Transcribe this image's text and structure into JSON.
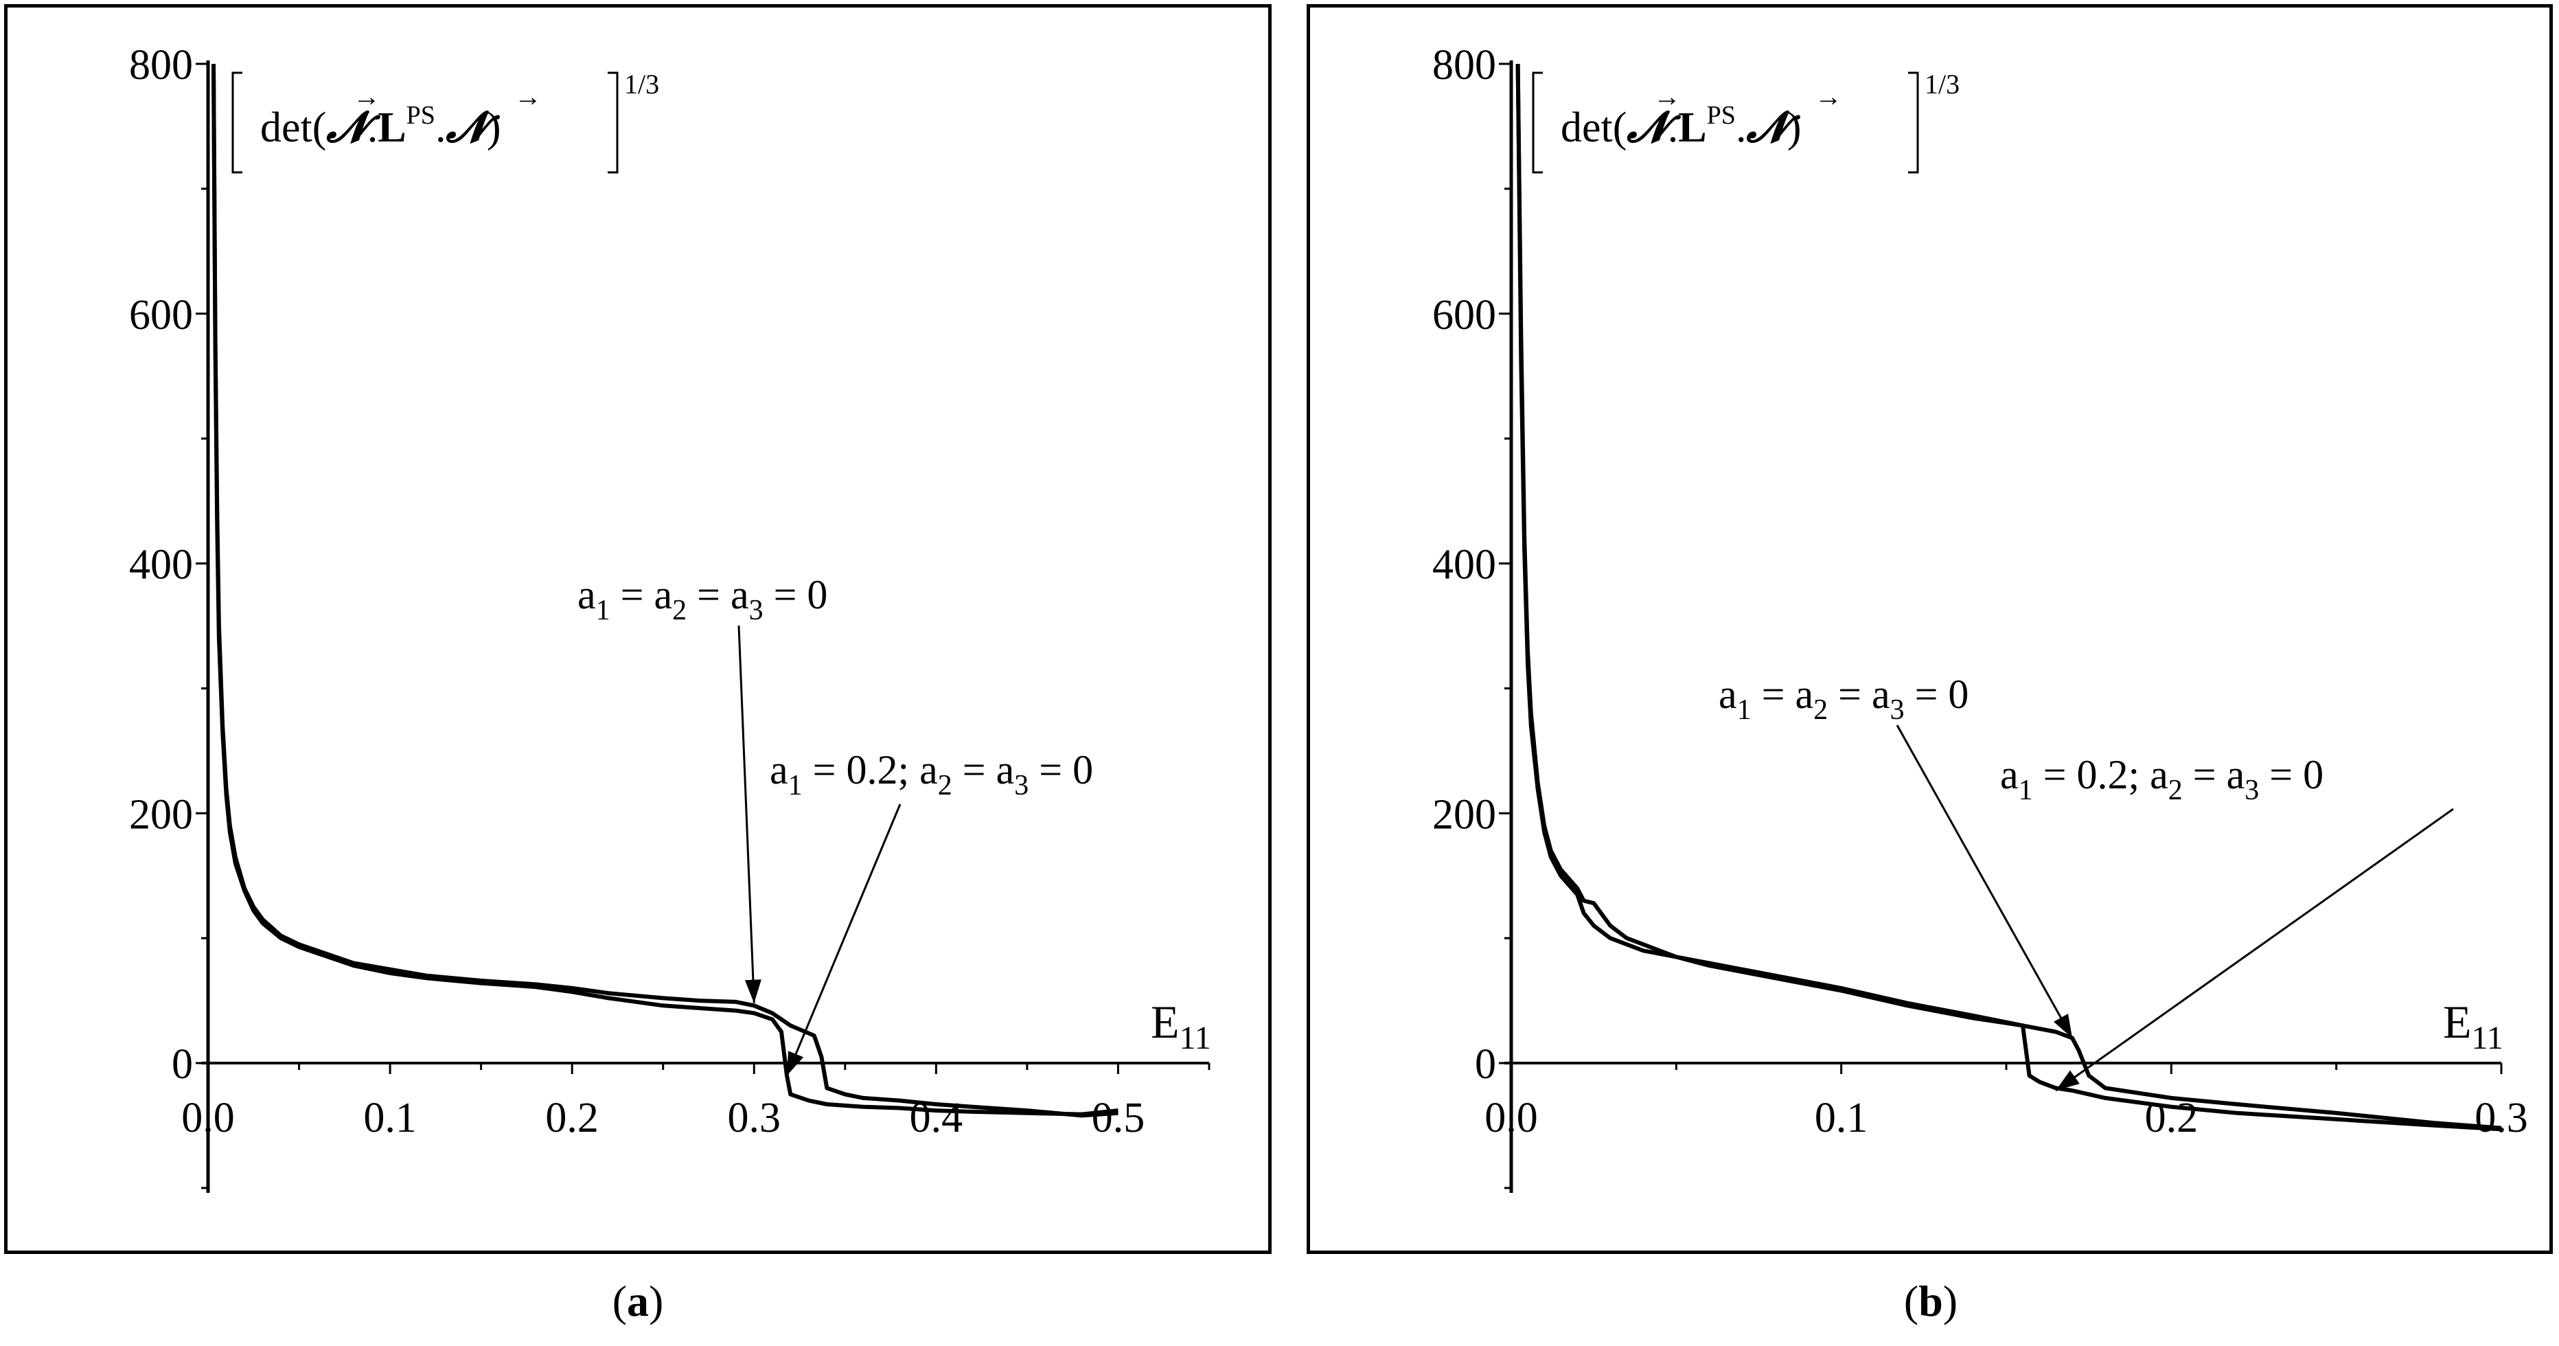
{
  "figure": {
    "panels": [
      {
        "caption_open": "(",
        "caption_letter": "a",
        "caption_close": ")"
      },
      {
        "caption_open": "(",
        "caption_letter": "b",
        "caption_close": ")"
      }
    ]
  },
  "chart_data": [
    {
      "type": "line",
      "panel": "a",
      "ylabel_expr": "[ det(N.L^PS.N) ]^1/3",
      "ylabel_parts": {
        "det": "det(",
        "dot1": ".",
        "L": "L",
        "PS": "PS",
        "dot2": ".",
        "close": ")",
        "power": "1/3",
        "N": "𝓝",
        "arrow": "→"
      },
      "xlabel_main": "E",
      "xlabel_sub": "11",
      "xlim": [
        0,
        0.55
      ],
      "ylim": [
        -100,
        800
      ],
      "xticks": [
        0.0,
        0.1,
        0.2,
        0.3,
        0.4,
        0.5
      ],
      "xtick_labels": [
        "0.0",
        "0.1",
        "0.2",
        "0.3",
        "0.4",
        "0.5"
      ],
      "yticks": [
        0,
        200,
        400,
        600,
        800
      ],
      "ytick_labels": [
        "0",
        "200",
        "400",
        "600",
        "800"
      ],
      "series": [
        {
          "name": "a1 = a2 = a3 = 0",
          "x": [
            0.003,
            0.004,
            0.005,
            0.006,
            0.008,
            0.01,
            0.012,
            0.015,
            0.02,
            0.025,
            0.03,
            0.04,
            0.05,
            0.06,
            0.08,
            0.1,
            0.12,
            0.15,
            0.18,
            0.2,
            0.22,
            0.25,
            0.27,
            0.29,
            0.3,
            0.31,
            0.32,
            0.333,
            0.337,
            0.34,
            0.35,
            0.36,
            0.38,
            0.4,
            0.42,
            0.45,
            0.48,
            0.5
          ],
          "y": [
            800,
            580,
            440,
            350,
            270,
            220,
            190,
            165,
            140,
            125,
            115,
            102,
            95,
            90,
            80,
            75,
            70,
            66,
            63,
            60,
            56,
            52,
            50,
            49,
            46,
            40,
            30,
            22,
            5,
            -20,
            -25,
            -28,
            -30,
            -33,
            -35,
            -38,
            -42,
            -40
          ]
        },
        {
          "name": "a1 = 0.2; a2 = a3 = 0",
          "x": [
            0.003,
            0.004,
            0.005,
            0.006,
            0.008,
            0.01,
            0.012,
            0.015,
            0.02,
            0.025,
            0.03,
            0.04,
            0.05,
            0.06,
            0.08,
            0.1,
            0.12,
            0.15,
            0.18,
            0.2,
            0.22,
            0.25,
            0.27,
            0.29,
            0.3,
            0.31,
            0.315,
            0.318,
            0.32,
            0.33,
            0.34,
            0.36,
            0.38,
            0.4,
            0.42,
            0.45,
            0.48,
            0.5
          ],
          "y": [
            800,
            570,
            430,
            340,
            265,
            215,
            185,
            160,
            138,
            122,
            112,
            100,
            93,
            88,
            78,
            72,
            68,
            64,
            61,
            57,
            52,
            46,
            44,
            42,
            40,
            35,
            25,
            -10,
            -25,
            -30,
            -33,
            -35,
            -36,
            -38,
            -39,
            -40,
            -41,
            -38
          ]
        }
      ],
      "annotations": [
        {
          "text_a": "a",
          "sub1": "1",
          "eq1": " = a",
          "sub2": "2",
          "eq2": " = a",
          "sub3": "3",
          "eq3": " = 0",
          "target_x": 0.3,
          "target_y": 48
        },
        {
          "text_a": "a",
          "sub1": "1",
          "eq1": " = 0.2; a",
          "sub2": "2",
          "eq2": " = a",
          "sub3": "3",
          "eq3": " = 0",
          "target_x": 0.318,
          "target_y": -10
        }
      ]
    },
    {
      "type": "line",
      "panel": "b",
      "ylabel_expr": "[ det(N.L^PS.N) ]^1/3",
      "ylabel_parts": {
        "det": "det(",
        "dot1": ".",
        "L": "L",
        "PS": "PS",
        "dot2": ".",
        "close": ")",
        "power": "1/3",
        "N": "𝓝",
        "arrow": "→"
      },
      "xlabel_main": "E",
      "xlabel_sub": "11",
      "xlim": [
        0,
        0.3
      ],
      "ylim": [
        -100,
        800
      ],
      "xticks": [
        0.0,
        0.1,
        0.2,
        0.3
      ],
      "xtick_labels": [
        "0.0",
        "0.1",
        "0.2",
        "0.3"
      ],
      "yticks": [
        0,
        200,
        400,
        600,
        800
      ],
      "ytick_labels": [
        "0",
        "200",
        "400",
        "600",
        "800"
      ],
      "series": [
        {
          "name": "a1 = a2 = a3 = 0",
          "x": [
            0.002,
            0.003,
            0.004,
            0.005,
            0.006,
            0.008,
            0.01,
            0.012,
            0.015,
            0.02,
            0.022,
            0.025,
            0.03,
            0.035,
            0.04,
            0.05,
            0.06,
            0.08,
            0.1,
            0.12,
            0.14,
            0.155,
            0.165,
            0.17,
            0.172,
            0.175,
            0.18,
            0.2,
            0.22,
            0.25,
            0.28,
            0.3
          ],
          "y": [
            800,
            580,
            420,
            330,
            280,
            225,
            190,
            170,
            155,
            140,
            130,
            128,
            110,
            100,
            95,
            85,
            80,
            70,
            60,
            48,
            38,
            30,
            25,
            20,
            10,
            -10,
            -20,
            -28,
            -33,
            -40,
            -48,
            -52
          ]
        },
        {
          "name": "a1 = 0.2; a2 = a3 = 0",
          "x": [
            0.002,
            0.003,
            0.004,
            0.005,
            0.006,
            0.008,
            0.01,
            0.012,
            0.015,
            0.02,
            0.022,
            0.025,
            0.03,
            0.04,
            0.05,
            0.06,
            0.08,
            0.1,
            0.12,
            0.14,
            0.155,
            0.157,
            0.16,
            0.165,
            0.17,
            0.18,
            0.2,
            0.22,
            0.25,
            0.28,
            0.3
          ],
          "y": [
            800,
            560,
            410,
            320,
            270,
            220,
            185,
            165,
            150,
            135,
            120,
            110,
            100,
            90,
            85,
            78,
            68,
            58,
            46,
            36,
            30,
            -10,
            -15,
            -20,
            -22,
            -28,
            -35,
            -40,
            -45,
            -50,
            -53
          ]
        }
      ],
      "annotations": [
        {
          "text_a": "a",
          "sub1": "1",
          "eq1": " = a",
          "sub2": "2",
          "eq2": " = a",
          "sub3": "3",
          "eq3": " = 0",
          "target_x": 0.17,
          "target_y": 20
        },
        {
          "text_a": "a",
          "sub1": "1",
          "eq1": " = 0.2; a",
          "sub2": "2",
          "eq2": " = a",
          "sub3": "3",
          "eq3": " = 0",
          "target_x": 0.165,
          "target_y": -22
        }
      ]
    }
  ]
}
